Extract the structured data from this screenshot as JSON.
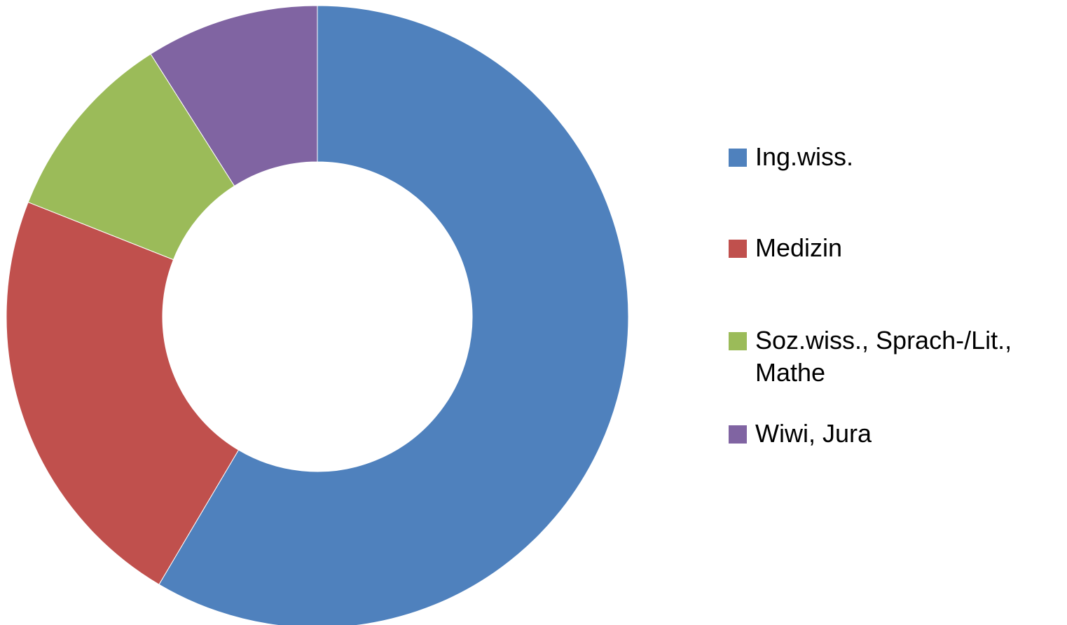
{
  "chart_data": {
    "type": "pie",
    "style": "donut",
    "categories": [
      "Ing.wiss.",
      "Medizin",
      "Soz.wiss., Sprach-/Lit., Mathe",
      "Wiwi, Jura"
    ],
    "values": [
      58.5,
      22.5,
      10,
      9
    ],
    "colors": [
      "#4F81BD",
      "#C0504D",
      "#9BBB59",
      "#8064A2"
    ],
    "legend_position": "right",
    "start_angle": "12 o'clock",
    "direction": "clockwise",
    "title": ""
  }
}
